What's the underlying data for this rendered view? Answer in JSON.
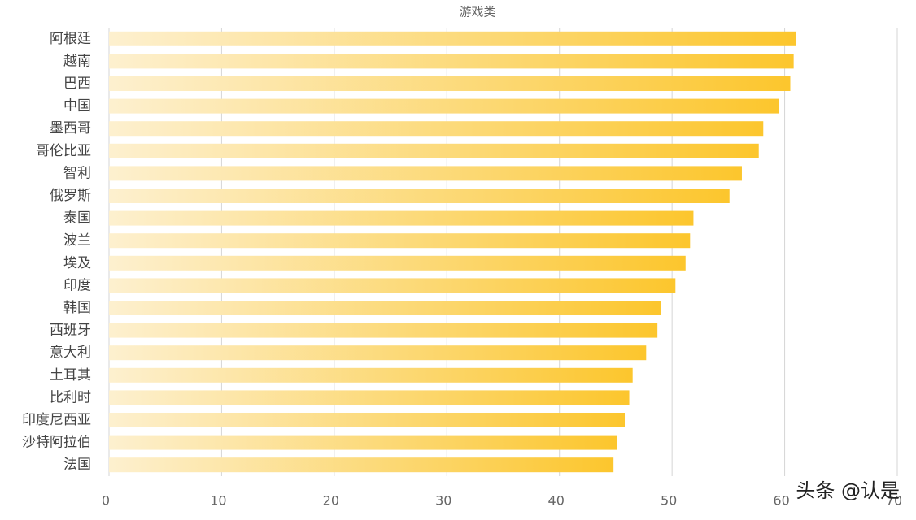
{
  "chart_data": {
    "type": "bar",
    "orientation": "horizontal",
    "title": "游戏类",
    "categories": [
      "阿根廷",
      "越南",
      "巴西",
      "中国",
      "墨西哥",
      "哥伦比亚",
      "智利",
      "俄罗斯",
      "泰国",
      "波兰",
      "埃及",
      "印度",
      "韩国",
      "西班牙",
      "意大利",
      "土耳其",
      "比利时",
      "印度尼西亚",
      "沙特阿拉伯",
      "法国"
    ],
    "values": [
      61.0,
      60.8,
      60.5,
      59.5,
      58.1,
      57.7,
      56.2,
      55.1,
      51.9,
      51.6,
      51.2,
      50.3,
      49.0,
      48.7,
      47.7,
      46.5,
      46.2,
      45.8,
      45.1,
      44.8
    ],
    "color": "#fcc62d",
    "xlim": [
      0,
      70
    ],
    "xticks": [
      0,
      10,
      20,
      30,
      40,
      50,
      60,
      70
    ],
    "grid": true,
    "watermark": "头条 @认是"
  }
}
